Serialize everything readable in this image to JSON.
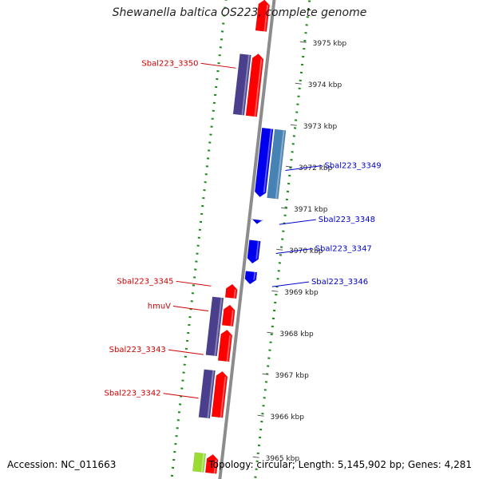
{
  "title": "Shewanella baltica OS223, complete genome",
  "footer": {
    "accession": "Accession: NC_011663",
    "topology": "Topology: circular; Length: 5,145,902 bp; Genes: 4,281"
  },
  "ruler": {
    "unit": "kbp",
    "ticks": [
      {
        "kbp": 3975,
        "label": "3975 kbp"
      },
      {
        "kbp": 3974,
        "label": "3974 kbp"
      },
      {
        "kbp": 3973,
        "label": "3973 kbp"
      },
      {
        "kbp": 3972,
        "label": "3972 kbp"
      },
      {
        "kbp": 3971,
        "label": "3971 kbp"
      },
      {
        "kbp": 3970,
        "label": "3970 kbp"
      },
      {
        "kbp": 3969,
        "label": "3969 kbp"
      },
      {
        "kbp": 3968,
        "label": "3968 kbp"
      },
      {
        "kbp": 3967,
        "label": "3967 kbp"
      },
      {
        "kbp": 3966,
        "label": "3966 kbp"
      },
      {
        "kbp": 3965,
        "label": "3965 kbp"
      }
    ]
  },
  "colors": {
    "forward_cds": "#ff0000",
    "reverse_cds": "#0000ee",
    "forward_gene": "#4a3f8c",
    "reverse_gene": "#4682b4",
    "rna": "#99dd33",
    "axis": "#8c8c8c",
    "dots": "#1a8a1a",
    "label_forward": "#cc0000",
    "label_reverse": "#0000cc"
  },
  "features": [
    {
      "strand": "forward",
      "kind": "cds",
      "start_kbp": 3975.15,
      "end_kbp": 3975.9
    },
    {
      "strand": "forward",
      "kind": "gene",
      "start_kbp": 3973.1,
      "end_kbp": 3974.55
    },
    {
      "strand": "forward",
      "kind": "cds",
      "start_kbp": 3973.1,
      "end_kbp": 3974.6
    },
    {
      "strand": "reverse",
      "kind": "cds",
      "start_kbp": 3971.2,
      "end_kbp": 3972.85
    },
    {
      "strand": "reverse",
      "kind": "gene",
      "start_kbp": 3971.2,
      "end_kbp": 3972.85
    },
    {
      "strand": "reverse",
      "kind": "cds",
      "start_kbp": 3970.55,
      "end_kbp": 3970.65
    },
    {
      "strand": "reverse",
      "kind": "cds",
      "start_kbp": 3969.6,
      "end_kbp": 3970.15
    },
    {
      "strand": "reverse",
      "kind": "cds",
      "start_kbp": 3969.1,
      "end_kbp": 3969.4
    },
    {
      "strand": "forward",
      "kind": "cds",
      "start_kbp": 3968.72,
      "end_kbp": 3969.05
    },
    {
      "strand": "forward",
      "kind": "gene",
      "start_kbp": 3967.3,
      "end_kbp": 3968.7
    },
    {
      "strand": "forward",
      "kind": "cds",
      "start_kbp": 3968.05,
      "end_kbp": 3968.55
    },
    {
      "strand": "forward",
      "kind": "cds",
      "start_kbp": 3967.2,
      "end_kbp": 3967.95
    },
    {
      "strand": "forward",
      "kind": "gene",
      "start_kbp": 3965.8,
      "end_kbp": 3966.95
    },
    {
      "strand": "forward",
      "kind": "cds",
      "start_kbp": 3965.85,
      "end_kbp": 3966.95
    },
    {
      "strand": "forward",
      "kind": "rna",
      "start_kbp": 3964.5,
      "end_kbp": 3964.95
    },
    {
      "strand": "forward",
      "kind": "cds",
      "start_kbp": 3964.5,
      "end_kbp": 3964.95
    }
  ],
  "gene_labels": [
    {
      "text": "Sbal223_3350",
      "strand": "forward",
      "kbp": 3974.2
    },
    {
      "text": "Sbal223_3349",
      "strand": "reverse",
      "kbp": 3971.9
    },
    {
      "text": "Sbal223_3348",
      "strand": "reverse",
      "kbp": 3970.6
    },
    {
      "text": "Sbal223_3347",
      "strand": "reverse",
      "kbp": 3969.9
    },
    {
      "text": "Sbal223_3346",
      "strand": "reverse",
      "kbp": 3969.1
    },
    {
      "text": "Sbal223_3345",
      "strand": "forward",
      "kbp": 3968.95
    },
    {
      "text": "hmuV",
      "strand": "forward",
      "kbp": 3968.35
    },
    {
      "text": "Sbal223_3343",
      "strand": "forward",
      "kbp": 3967.3
    },
    {
      "text": "Sbal223_3342",
      "strand": "forward",
      "kbp": 3966.25
    }
  ]
}
